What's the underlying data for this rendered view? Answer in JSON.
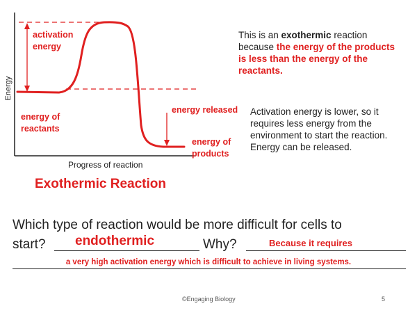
{
  "diagram": {
    "y_axis_label": "Energy",
    "x_axis_label": "Progress of reaction",
    "title": "Exothermic Reaction",
    "labels": {
      "activation_energy": [
        "activation",
        "energy"
      ],
      "energy_of_reactants": [
        "energy of",
        "reactants"
      ],
      "energy_released": "energy released",
      "energy_of_products": [
        "energy of",
        "products"
      ]
    },
    "colors": {
      "curve": "#e02020",
      "axes": "#222222",
      "labels": "#e02020"
    }
  },
  "explanation": {
    "line1_prefix": "This is an ",
    "line1_bold": "exothermic",
    "line1_suffix": " reaction",
    "line2_prefix": "because ",
    "line2_red": "the energy of the products",
    "line3_red": "is less than the energy of the",
    "line4_red": "reactants."
  },
  "note": {
    "lines": [
      "Activation energy is lower, so it",
      "requires less energy from the",
      "environment to start the reaction.",
      "Energy can be released."
    ]
  },
  "question": {
    "line1": "Which type of reaction would be more difficult for cells to",
    "start": "start?",
    "why": "Why?",
    "answer1": "endothermic",
    "answer2": "Because it requires",
    "answer3": "a very high activation energy which is difficult to achieve in living systems."
  },
  "footer": {
    "credit": "©Engaging Biology",
    "page": "5"
  }
}
